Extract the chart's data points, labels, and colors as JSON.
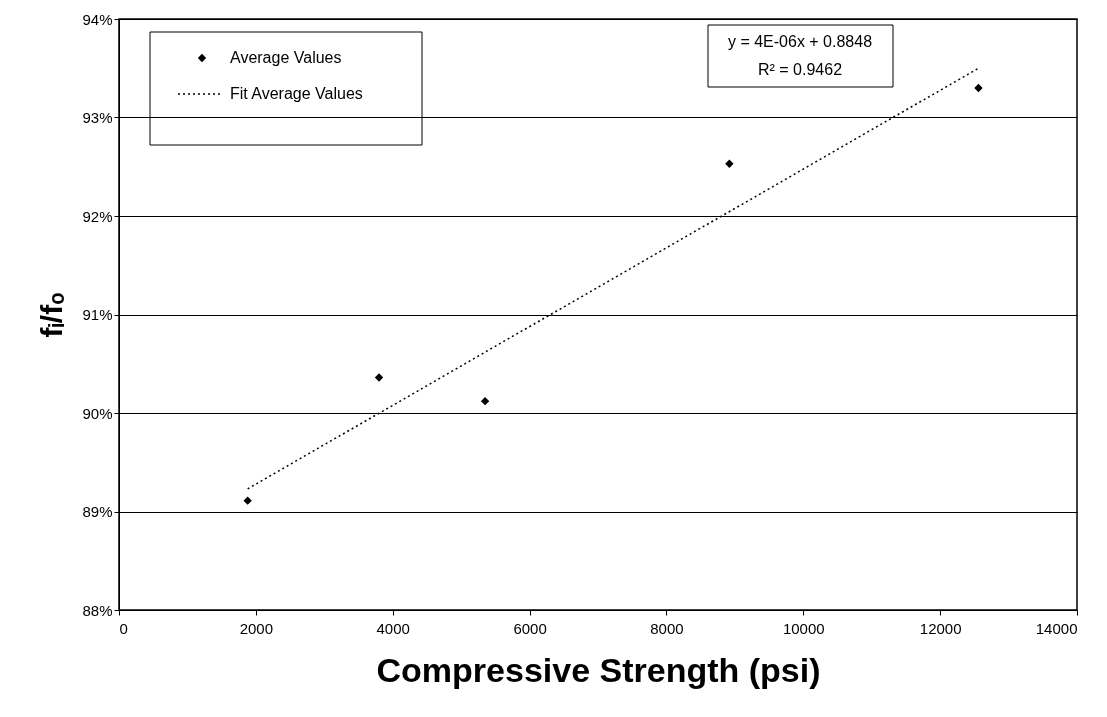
{
  "chart_data": {
    "type": "scatter",
    "xlabel": "Compressive Strength (psi)",
    "ylabel": "fᵢ/fₒ",
    "xlim": [
      0,
      14000
    ],
    "xticks": [
      0,
      2000,
      4000,
      6000,
      8000,
      10000,
      12000,
      14000
    ],
    "ylim": [
      88,
      94
    ],
    "yticks": [
      {
        "value": 88,
        "label": "88%"
      },
      {
        "value": 89,
        "label": "89%"
      },
      {
        "value": 90,
        "label": "90%"
      },
      {
        "value": 91,
        "label": "91%"
      },
      {
        "value": 92,
        "label": "92%"
      },
      {
        "value": 93,
        "label": "93%"
      },
      {
        "value": 94,
        "label": "94%"
      }
    ],
    "grid": "y",
    "legend": "top left",
    "annotations": [
      "y = 4E-06x + 0.8848",
      "R² = 0.9462"
    ],
    "series": [
      {
        "name": "Average Values",
        "color": "#000000",
        "marker": "diamond",
        "x": [
          1880,
          3800,
          5350,
          8920,
          12560
        ],
        "values": [
          89.11,
          90.36,
          90.12,
          92.53,
          93.3
        ]
      },
      {
        "name": "Fit Average Values",
        "type": "line",
        "color": "#000000",
        "line_style": "dotted",
        "x": [
          1880,
          12560
        ],
        "values": [
          89.23,
          93.5
        ]
      }
    ]
  }
}
